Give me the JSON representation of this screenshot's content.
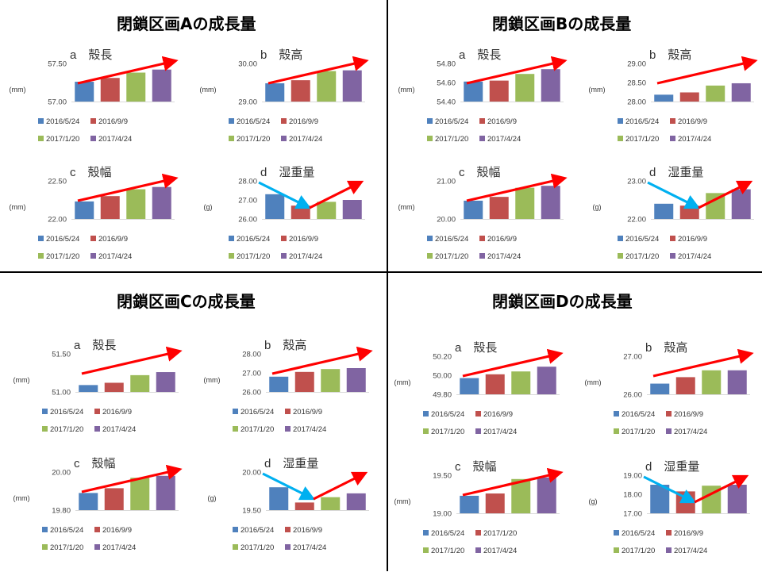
{
  "colors": {
    "s1": "#4F81BD",
    "s2": "#C0504D",
    "s3": "#9BBB59",
    "s4": "#8064A2",
    "up_arrow": "#FF0000",
    "down_arrow": "#00B0F0",
    "axis": "#D9D9D9",
    "divider": "#000000"
  },
  "icons": {
    "trend_up": "red-arrow",
    "trend_down": "blue-arrow"
  },
  "sections": [
    {
      "title": "閉鎖区画Aの成長量"
    },
    {
      "title": "閉鎖区画Bの成長量"
    },
    {
      "title": "閉鎖区画Cの成長量"
    },
    {
      "title": "閉鎖区画Dの成長量"
    }
  ],
  "chart_data": [
    {
      "section": 0,
      "type": "bar",
      "title": "a　殻長",
      "ylabel": "(mm)",
      "ylim": [
        57.0,
        57.5
      ],
      "yticks": [
        "57.50",
        "57.00"
      ],
      "series": [
        {
          "name": "2016/5/24",
          "value": 57.26
        },
        {
          "name": "2016/9/9",
          "value": 57.31
        },
        {
          "name": "2017/1/20",
          "value": 57.38
        },
        {
          "name": "2017/4/24",
          "value": 57.42
        }
      ],
      "trend": [
        "up"
      ]
    },
    {
      "section": 0,
      "type": "bar",
      "title": "b　殻高",
      "ylabel": "(mm)",
      "ylim": [
        29.0,
        30.0
      ],
      "yticks": [
        "30.00",
        "29.00"
      ],
      "series": [
        {
          "name": "2016/5/24",
          "value": 29.48
        },
        {
          "name": "2016/9/9",
          "value": 29.56
        },
        {
          "name": "2017/1/20",
          "value": 29.8
        },
        {
          "name": "2017/4/24",
          "value": 29.82
        }
      ],
      "trend": [
        "up"
      ]
    },
    {
      "section": 0,
      "type": "bar",
      "title": "c　殻幅",
      "ylabel": "(mm)",
      "ylim": [
        22.0,
        22.5
      ],
      "yticks": [
        "22.50",
        "22.00"
      ],
      "series": [
        {
          "name": "2016/5/24",
          "value": 22.23
        },
        {
          "name": "2016/9/9",
          "value": 22.3
        },
        {
          "name": "2017/1/20",
          "value": 22.39
        },
        {
          "name": "2017/4/24",
          "value": 22.42
        }
      ],
      "trend": [
        "up"
      ]
    },
    {
      "section": 0,
      "type": "bar",
      "title": "d　湿重量",
      "ylabel": "(g)",
      "ylim": [
        26.0,
        28.0
      ],
      "yticks": [
        "28.00",
        "27.00",
        "26.00"
      ],
      "series": [
        {
          "name": "2016/5/24",
          "value": 27.3
        },
        {
          "name": "2016/9/9",
          "value": 26.7
        },
        {
          "name": "2017/1/20",
          "value": 26.9
        },
        {
          "name": "2017/4/24",
          "value": 27.0
        }
      ],
      "trend": [
        "down",
        "up"
      ]
    },
    {
      "section": 1,
      "type": "bar",
      "title": "a　殻長",
      "ylabel": "(mm)",
      "ylim": [
        54.4,
        54.8
      ],
      "yticks": [
        "54.80",
        "54.60",
        "54.40"
      ],
      "series": [
        {
          "name": "2016/5/24",
          "value": 54.61
        },
        {
          "name": "2016/9/9",
          "value": 54.62
        },
        {
          "name": "2017/1/20",
          "value": 54.69
        },
        {
          "name": "2017/4/24",
          "value": 54.74
        }
      ],
      "trend": [
        "up"
      ]
    },
    {
      "section": 1,
      "type": "bar",
      "title": "b　殻高",
      "ylabel": "(mm)",
      "ylim": [
        28.0,
        29.0
      ],
      "yticks": [
        "29.00",
        "28.50",
        "28.00"
      ],
      "series": [
        {
          "name": "2016/5/24",
          "value": 28.18
        },
        {
          "name": "2016/9/9",
          "value": 28.24
        },
        {
          "name": "2017/1/20",
          "value": 28.42
        },
        {
          "name": "2017/4/24",
          "value": 28.48
        }
      ],
      "trend": [
        "up"
      ]
    },
    {
      "section": 1,
      "type": "bar",
      "title": "c　殻幅",
      "ylabel": "(mm)",
      "ylim": [
        20.0,
        21.0
      ],
      "yticks": [
        "21.00",
        "20.00"
      ],
      "series": [
        {
          "name": "2016/5/24",
          "value": 20.48
        },
        {
          "name": "2016/9/9",
          "value": 20.58
        },
        {
          "name": "2017/1/20",
          "value": 20.82
        },
        {
          "name": "2017/4/24",
          "value": 20.87
        }
      ],
      "trend": [
        "up"
      ]
    },
    {
      "section": 1,
      "type": "bar",
      "title": "d　湿重量",
      "ylabel": "(g)",
      "ylim": [
        22.0,
        23.0
      ],
      "yticks": [
        "23.00",
        "22.00"
      ],
      "series": [
        {
          "name": "2016/5/24",
          "value": 22.4
        },
        {
          "name": "2016/9/9",
          "value": 22.35
        },
        {
          "name": "2017/1/20",
          "value": 22.68
        },
        {
          "name": "2017/4/24",
          "value": 22.78
        }
      ],
      "trend": [
        "down",
        "up"
      ]
    },
    {
      "section": 2,
      "type": "bar",
      "title": "a　殻長",
      "ylabel": "(mm)",
      "ylim": [
        51.0,
        51.5
      ],
      "yticks": [
        "51.50",
        "51.00"
      ],
      "series": [
        {
          "name": "2016/5/24",
          "value": 51.09
        },
        {
          "name": "2016/9/9",
          "value": 51.12
        },
        {
          "name": "2017/1/20",
          "value": 51.22
        },
        {
          "name": "2017/4/24",
          "value": 51.26
        }
      ],
      "trend": [
        "up"
      ]
    },
    {
      "section": 2,
      "type": "bar",
      "title": "b　殻高",
      "ylabel": "(mm)",
      "ylim": [
        26.0,
        28.0
      ],
      "yticks": [
        "28.00",
        "27.00",
        "26.00"
      ],
      "series": [
        {
          "name": "2016/5/24",
          "value": 26.8
        },
        {
          "name": "2016/9/9",
          "value": 27.05
        },
        {
          "name": "2017/1/20",
          "value": 27.2
        },
        {
          "name": "2017/4/24",
          "value": 27.25
        }
      ],
      "trend": [
        "up"
      ]
    },
    {
      "section": 2,
      "type": "bar",
      "title": "c　殻幅",
      "ylabel": "(mm)",
      "ylim": [
        19.8,
        20.0
      ],
      "yticks": [
        "20.00",
        "19.80"
      ],
      "series": [
        {
          "name": "2016/5/24",
          "value": 19.89
        },
        {
          "name": "2016/9/9",
          "value": 19.915
        },
        {
          "name": "2017/1/20",
          "value": 19.97
        },
        {
          "name": "2017/4/24",
          "value": 19.98
        }
      ],
      "trend": [
        "up"
      ]
    },
    {
      "section": 2,
      "type": "bar",
      "title": "d　湿重量",
      "ylabel": "(g)",
      "ylim": [
        19.5,
        20.0
      ],
      "yticks": [
        "20.00",
        "19.50"
      ],
      "series": [
        {
          "name": "2016/5/24",
          "value": 19.8
        },
        {
          "name": "2016/9/9",
          "value": 19.6
        },
        {
          "name": "2017/1/20",
          "value": 19.67
        },
        {
          "name": "2017/4/24",
          "value": 19.72
        }
      ],
      "trend": [
        "down",
        "up"
      ]
    },
    {
      "section": 3,
      "type": "bar",
      "title": "a　殻長",
      "ylabel": "(mm)",
      "ylim": [
        49.8,
        50.2
      ],
      "yticks": [
        "50.20",
        "50.00",
        "49.80"
      ],
      "series": [
        {
          "name": "2016/5/24",
          "value": 49.97
        },
        {
          "name": "2016/9/9",
          "value": 50.01
        },
        {
          "name": "2017/1/20",
          "value": 50.04
        },
        {
          "name": "2017/4/24",
          "value": 50.09
        }
      ],
      "trend": [
        "up"
      ]
    },
    {
      "section": 3,
      "type": "bar",
      "title": "b　殻高",
      "ylabel": "(mm)",
      "ylim": [
        26.0,
        27.0
      ],
      "yticks": [
        "27.00",
        "26.00"
      ],
      "series": [
        {
          "name": "2016/5/24",
          "value": 26.28
        },
        {
          "name": "2016/9/9",
          "value": 26.45
        },
        {
          "name": "2017/1/20",
          "value": 26.63
        },
        {
          "name": "2017/4/24",
          "value": 26.63
        }
      ],
      "trend": [
        "up"
      ]
    },
    {
      "section": 3,
      "type": "bar",
      "title": "c　殻幅",
      "ylabel": "(mm)",
      "ylim": [
        19.0,
        19.5
      ],
      "yticks": [
        "19.50",
        "19.00"
      ],
      "series": [
        {
          "name": "2016/5/24",
          "value": 19.23
        },
        {
          "name": "2017/1/20",
          "value": 19.26
        },
        {
          "name": "2017/1/20",
          "value": 19.45
        },
        {
          "name": "2017/4/24",
          "value": 19.47
        }
      ],
      "trend": [
        "up"
      ]
    },
    {
      "section": 3,
      "type": "bar",
      "title": "d　湿重量",
      "ylabel": "(g)",
      "ylim": [
        17.0,
        19.0
      ],
      "yticks": [
        "19.00",
        "18.00",
        "17.00"
      ],
      "series": [
        {
          "name": "2016/5/24",
          "value": 18.5
        },
        {
          "name": "2016/9/9",
          "value": 18.15
        },
        {
          "name": "2017/1/20",
          "value": 18.45
        },
        {
          "name": "2017/4/24",
          "value": 18.5
        }
      ],
      "trend": [
        "down",
        "up"
      ]
    }
  ]
}
